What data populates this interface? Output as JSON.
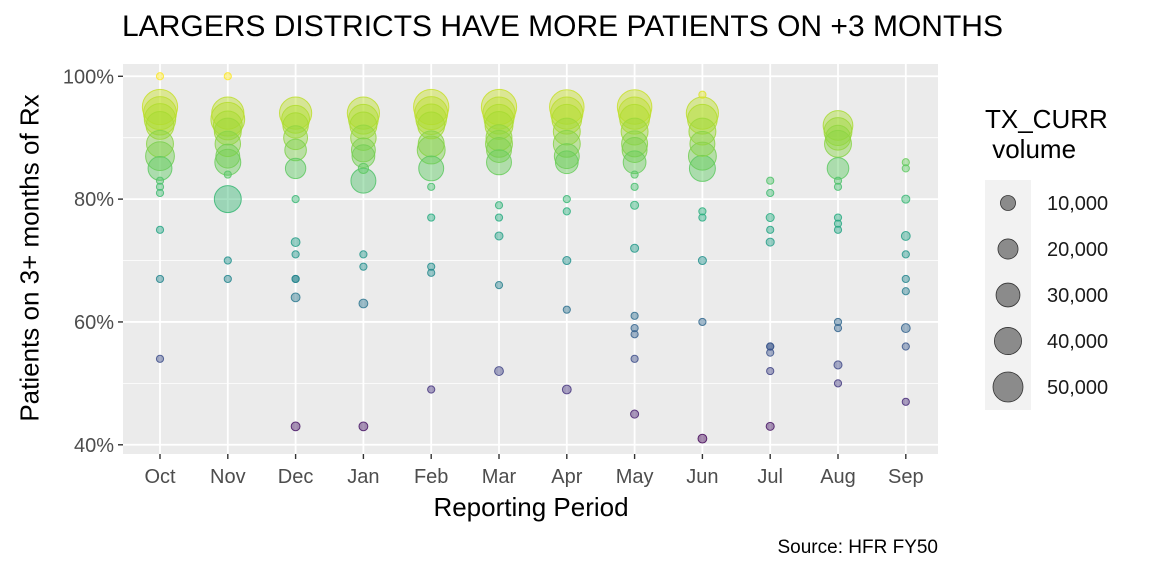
{
  "chart_data": {
    "type": "scatter",
    "title": "LARGERS DISTRICTS HAVE MORE PATIENTS ON +3 MONTHS",
    "xlabel": "Reporting Period",
    "ylabel": "Patients on 3+ months of Rx",
    "caption": "Source: HFR FY50",
    "categories": [
      "Oct",
      "Nov",
      "Dec",
      "Jan",
      "Feb",
      "Mar",
      "Apr",
      "May",
      "Jun",
      "Jul",
      "Aug",
      "Sep"
    ],
    "ylim": [
      0.385,
      1.02
    ],
    "yticks": [
      0.4,
      0.6,
      0.8,
      1.0
    ],
    "ytick_labels": [
      "40%",
      "60%",
      "80%",
      "100%"
    ],
    "grid": true,
    "color_scale": "viridis (value-mapped, 0.40 = purple → 1.00 = yellow)",
    "legend": {
      "title": "TX_CURR\n volume",
      "position": "right",
      "sizes": [
        10000,
        20000,
        30000,
        40000,
        50000
      ],
      "labels": [
        "10,000",
        "20,000",
        "30,000",
        "40,000",
        "50,000"
      ]
    },
    "points": [
      {
        "x": "Oct",
        "y": 1.0,
        "size": 1000
      },
      {
        "x": "Oct",
        "y": 0.95,
        "size": 48000
      },
      {
        "x": "Oct",
        "y": 0.94,
        "size": 42000
      },
      {
        "x": "Oct",
        "y": 0.93,
        "size": 38000
      },
      {
        "x": "Oct",
        "y": 0.92,
        "size": 30000
      },
      {
        "x": "Oct",
        "y": 0.89,
        "size": 28000
      },
      {
        "x": "Oct",
        "y": 0.87,
        "size": 32000
      },
      {
        "x": "Oct",
        "y": 0.85,
        "size": 22000
      },
      {
        "x": "Oct",
        "y": 0.83,
        "size": 2000
      },
      {
        "x": "Oct",
        "y": 0.82,
        "size": 2000
      },
      {
        "x": "Oct",
        "y": 0.81,
        "size": 2000
      },
      {
        "x": "Oct",
        "y": 0.75,
        "size": 2000
      },
      {
        "x": "Oct",
        "y": 0.67,
        "size": 1000
      },
      {
        "x": "Oct",
        "y": 0.54,
        "size": 2000
      },
      {
        "x": "Nov",
        "y": 1.0,
        "size": 1000
      },
      {
        "x": "Nov",
        "y": 0.94,
        "size": 40000
      },
      {
        "x": "Nov",
        "y": 0.93,
        "size": 44000
      },
      {
        "x": "Nov",
        "y": 0.92,
        "size": 32000
      },
      {
        "x": "Nov",
        "y": 0.91,
        "size": 28000
      },
      {
        "x": "Nov",
        "y": 0.89,
        "size": 25000
      },
      {
        "x": "Nov",
        "y": 0.87,
        "size": 22000
      },
      {
        "x": "Nov",
        "y": 0.86,
        "size": 26000
      },
      {
        "x": "Nov",
        "y": 0.84,
        "size": 2000
      },
      {
        "x": "Nov",
        "y": 0.8,
        "size": 28000
      },
      {
        "x": "Nov",
        "y": 0.7,
        "size": 2000
      },
      {
        "x": "Nov",
        "y": 0.67,
        "size": 1500
      },
      {
        "x": "Dec",
        "y": 0.94,
        "size": 40000
      },
      {
        "x": "Dec",
        "y": 0.93,
        "size": 30000
      },
      {
        "x": "Dec",
        "y": 0.92,
        "size": 25000
      },
      {
        "x": "Dec",
        "y": 0.9,
        "size": 22000
      },
      {
        "x": "Dec",
        "y": 0.88,
        "size": 18000
      },
      {
        "x": "Dec",
        "y": 0.85,
        "size": 16000
      },
      {
        "x": "Dec",
        "y": 0.8,
        "size": 1500
      },
      {
        "x": "Dec",
        "y": 0.73,
        "size": 3000
      },
      {
        "x": "Dec",
        "y": 0.71,
        "size": 1500
      },
      {
        "x": "Dec",
        "y": 0.67,
        "size": 2000
      },
      {
        "x": "Dec",
        "y": 0.67,
        "size": 1500
      },
      {
        "x": "Dec",
        "y": 0.64,
        "size": 3000
      },
      {
        "x": "Dec",
        "y": 0.43,
        "size": 3000
      },
      {
        "x": "Jan",
        "y": 0.94,
        "size": 40000
      },
      {
        "x": "Jan",
        "y": 0.93,
        "size": 34000
      },
      {
        "x": "Jan",
        "y": 0.92,
        "size": 28000
      },
      {
        "x": "Jan",
        "y": 0.9,
        "size": 25000
      },
      {
        "x": "Jan",
        "y": 0.88,
        "size": 22000
      },
      {
        "x": "Jan",
        "y": 0.87,
        "size": 20000
      },
      {
        "x": "Jan",
        "y": 0.85,
        "size": 4000
      },
      {
        "x": "Jan",
        "y": 0.83,
        "size": 24000
      },
      {
        "x": "Jan",
        "y": 0.71,
        "size": 2000
      },
      {
        "x": "Jan",
        "y": 0.69,
        "size": 2000
      },
      {
        "x": "Jan",
        "y": 0.63,
        "size": 3000
      },
      {
        "x": "Jan",
        "y": 0.43,
        "size": 3000
      },
      {
        "x": "Feb",
        "y": 0.95,
        "size": 48000
      },
      {
        "x": "Feb",
        "y": 0.94,
        "size": 42000
      },
      {
        "x": "Feb",
        "y": 0.93,
        "size": 36000
      },
      {
        "x": "Feb",
        "y": 0.92,
        "size": 28000
      },
      {
        "x": "Feb",
        "y": 0.89,
        "size": 26000
      },
      {
        "x": "Feb",
        "y": 0.88,
        "size": 30000
      },
      {
        "x": "Feb",
        "y": 0.85,
        "size": 24000
      },
      {
        "x": "Feb",
        "y": 0.82,
        "size": 1500
      },
      {
        "x": "Feb",
        "y": 0.77,
        "size": 2000
      },
      {
        "x": "Feb",
        "y": 0.69,
        "size": 2000
      },
      {
        "x": "Feb",
        "y": 0.68,
        "size": 2000
      },
      {
        "x": "Feb",
        "y": 0.49,
        "size": 2000
      },
      {
        "x": "Mar",
        "y": 0.95,
        "size": 48000
      },
      {
        "x": "Mar",
        "y": 0.94,
        "size": 40000
      },
      {
        "x": "Mar",
        "y": 0.93,
        "size": 34000
      },
      {
        "x": "Mar",
        "y": 0.92,
        "size": 30000
      },
      {
        "x": "Mar",
        "y": 0.9,
        "size": 26000
      },
      {
        "x": "Mar",
        "y": 0.89,
        "size": 28000
      },
      {
        "x": "Mar",
        "y": 0.88,
        "size": 24000
      },
      {
        "x": "Mar",
        "y": 0.86,
        "size": 24000
      },
      {
        "x": "Mar",
        "y": 0.79,
        "size": 1500
      },
      {
        "x": "Mar",
        "y": 0.77,
        "size": 2000
      },
      {
        "x": "Mar",
        "y": 0.74,
        "size": 2500
      },
      {
        "x": "Mar",
        "y": 0.66,
        "size": 2000
      },
      {
        "x": "Mar",
        "y": 0.52,
        "size": 3000
      },
      {
        "x": "Apr",
        "y": 0.95,
        "size": 46000
      },
      {
        "x": "Apr",
        "y": 0.94,
        "size": 40000
      },
      {
        "x": "Apr",
        "y": 0.93,
        "size": 34000
      },
      {
        "x": "Apr",
        "y": 0.91,
        "size": 28000
      },
      {
        "x": "Apr",
        "y": 0.89,
        "size": 28000
      },
      {
        "x": "Apr",
        "y": 0.87,
        "size": 24000
      },
      {
        "x": "Apr",
        "y": 0.86,
        "size": 20000
      },
      {
        "x": "Apr",
        "y": 0.8,
        "size": 1500
      },
      {
        "x": "Apr",
        "y": 0.78,
        "size": 2000
      },
      {
        "x": "Apr",
        "y": 0.7,
        "size": 2500
      },
      {
        "x": "Apr",
        "y": 0.62,
        "size": 2000
      },
      {
        "x": "Apr",
        "y": 0.49,
        "size": 3000
      },
      {
        "x": "May",
        "y": 0.95,
        "size": 46000
      },
      {
        "x": "May",
        "y": 0.94,
        "size": 40000
      },
      {
        "x": "May",
        "y": 0.93,
        "size": 34000
      },
      {
        "x": "May",
        "y": 0.91,
        "size": 28000
      },
      {
        "x": "May",
        "y": 0.89,
        "size": 26000
      },
      {
        "x": "May",
        "y": 0.88,
        "size": 24000
      },
      {
        "x": "May",
        "y": 0.86,
        "size": 20000
      },
      {
        "x": "May",
        "y": 0.84,
        "size": 1500
      },
      {
        "x": "May",
        "y": 0.82,
        "size": 2000
      },
      {
        "x": "May",
        "y": 0.79,
        "size": 2500
      },
      {
        "x": "May",
        "y": 0.72,
        "size": 2500
      },
      {
        "x": "May",
        "y": 0.61,
        "size": 2000
      },
      {
        "x": "May",
        "y": 0.59,
        "size": 1500
      },
      {
        "x": "May",
        "y": 0.58,
        "size": 1500
      },
      {
        "x": "May",
        "y": 0.54,
        "size": 2000
      },
      {
        "x": "May",
        "y": 0.45,
        "size": 2500
      },
      {
        "x": "Jun",
        "y": 0.97,
        "size": 1500
      },
      {
        "x": "Jun",
        "y": 0.94,
        "size": 40000
      },
      {
        "x": "Jun",
        "y": 0.93,
        "size": 34000
      },
      {
        "x": "Jun",
        "y": 0.91,
        "size": 28000
      },
      {
        "x": "Jun",
        "y": 0.89,
        "size": 24000
      },
      {
        "x": "Jun",
        "y": 0.87,
        "size": 30000
      },
      {
        "x": "Jun",
        "y": 0.85,
        "size": 26000
      },
      {
        "x": "Jun",
        "y": 0.78,
        "size": 1500
      },
      {
        "x": "Jun",
        "y": 0.77,
        "size": 2000
      },
      {
        "x": "Jun",
        "y": 0.7,
        "size": 2500
      },
      {
        "x": "Jun",
        "y": 0.6,
        "size": 2000
      },
      {
        "x": "Jun",
        "y": 0.41,
        "size": 3000
      },
      {
        "x": "Jul",
        "y": 0.83,
        "size": 1500
      },
      {
        "x": "Jul",
        "y": 0.81,
        "size": 1500
      },
      {
        "x": "Jul",
        "y": 0.77,
        "size": 2500
      },
      {
        "x": "Jul",
        "y": 0.75,
        "size": 2000
      },
      {
        "x": "Jul",
        "y": 0.73,
        "size": 2500
      },
      {
        "x": "Jul",
        "y": 0.56,
        "size": 2000
      },
      {
        "x": "Jul",
        "y": 0.56,
        "size": 1500
      },
      {
        "x": "Jul",
        "y": 0.55,
        "size": 1500
      },
      {
        "x": "Jul",
        "y": 0.52,
        "size": 2000
      },
      {
        "x": "Jul",
        "y": 0.43,
        "size": 2500
      },
      {
        "x": "Aug",
        "y": 0.92,
        "size": 34000
      },
      {
        "x": "Aug",
        "y": 0.91,
        "size": 30000
      },
      {
        "x": "Aug",
        "y": 0.9,
        "size": 24000
      },
      {
        "x": "Aug",
        "y": 0.89,
        "size": 28000
      },
      {
        "x": "Aug",
        "y": 0.85,
        "size": 18000
      },
      {
        "x": "Aug",
        "y": 0.83,
        "size": 1500
      },
      {
        "x": "Aug",
        "y": 0.82,
        "size": 2000
      },
      {
        "x": "Aug",
        "y": 0.77,
        "size": 2000
      },
      {
        "x": "Aug",
        "y": 0.76,
        "size": 1500
      },
      {
        "x": "Aug",
        "y": 0.75,
        "size": 2000
      },
      {
        "x": "Aug",
        "y": 0.6,
        "size": 2000
      },
      {
        "x": "Aug",
        "y": 0.59,
        "size": 1500
      },
      {
        "x": "Aug",
        "y": 0.53,
        "size": 2500
      },
      {
        "x": "Aug",
        "y": 0.5,
        "size": 2000
      },
      {
        "x": "Sep",
        "y": 0.86,
        "size": 1500
      },
      {
        "x": "Sep",
        "y": 0.85,
        "size": 1500
      },
      {
        "x": "Sep",
        "y": 0.8,
        "size": 2500
      },
      {
        "x": "Sep",
        "y": 0.74,
        "size": 3000
      },
      {
        "x": "Sep",
        "y": 0.71,
        "size": 1500
      },
      {
        "x": "Sep",
        "y": 0.67,
        "size": 2000
      },
      {
        "x": "Sep",
        "y": 0.65,
        "size": 2000
      },
      {
        "x": "Sep",
        "y": 0.59,
        "size": 3000
      },
      {
        "x": "Sep",
        "y": 0.56,
        "size": 1500
      },
      {
        "x": "Sep",
        "y": 0.47,
        "size": 2000
      }
    ]
  },
  "colors": {
    "panel_background": "#ebebeb",
    "grid_major": "#ffffff",
    "tick_text": "#4d4d4d",
    "legend_key_background": "#f2f2f2",
    "legend_point": "#7f7f7f"
  }
}
